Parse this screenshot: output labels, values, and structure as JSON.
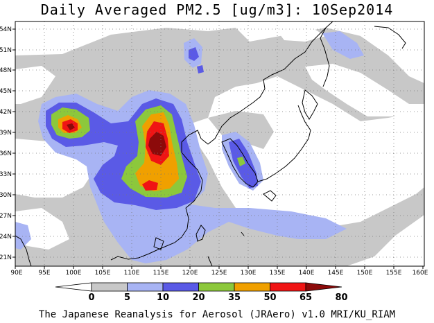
{
  "title": "Daily Averaged PM2.5 [ug/m3]: 10Sep2014",
  "credit": "The Japanese Reanalysis for Aerosol (JRAero) v1.0 MRI/KU_RIAM",
  "axes": {
    "lon_labels": [
      "90E",
      "95E",
      "100E",
      "105E",
      "110E",
      "115E",
      "120E",
      "125E",
      "130E",
      "135E",
      "140E",
      "145E",
      "150E",
      "155E",
      "160E"
    ],
    "lat_labels": [
      "54N",
      "51N",
      "48N",
      "45N",
      "42N",
      "39N",
      "36N",
      "33N",
      "30N",
      "27N",
      "24N",
      "21N"
    ]
  },
  "colorbar": {
    "labels": [
      "0",
      "5",
      "10",
      "20",
      "35",
      "50",
      "65",
      "80"
    ],
    "colors": [
      "#ffffff",
      "#c8c8c8",
      "#a8b4f4",
      "#5a5ae6",
      "#8cc83c",
      "#f0a000",
      "#f01414",
      "#8c0a0a"
    ]
  }
}
